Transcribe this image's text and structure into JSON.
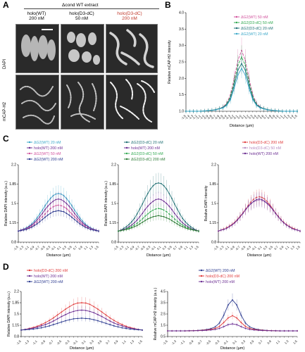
{
  "panels": {
    "A": "A",
    "B": "B",
    "C": "C",
    "D": "D"
  },
  "micrograph": {
    "header": "Δcond WT extract",
    "columns": [
      {
        "line1": "holo(WT)",
        "line2": "200 nM",
        "color": "#1a1a1a"
      },
      {
        "line1": "holo(D3-dC)",
        "line2": "50 nM",
        "color": "#1a1a1a"
      },
      {
        "line1": "holo(D3-dC)",
        "line2": "200 nM",
        "color": "#c0392b"
      }
    ],
    "rows": [
      "DAPI",
      "mCAP-H2"
    ]
  },
  "chart_data": [
    {
      "id": "B",
      "type": "line",
      "xlabel": "Distance (µm)",
      "ylabel": "Relative mCAP-H2 intensity",
      "x": [
        -1.5,
        -1.4,
        -1.3,
        -1.2,
        -1.1,
        -1.0,
        -0.9,
        -0.8,
        -0.7,
        -0.6,
        -0.5,
        -0.4,
        -0.3,
        -0.2,
        -0.1,
        0.0,
        0.1,
        0.2,
        0.3,
        0.4,
        0.5,
        0.6,
        0.7,
        0.8,
        0.9,
        1.0,
        1.1,
        1.2,
        1.3,
        1.4,
        1.5
      ],
      "ylim": [
        1.0,
        4.0
      ],
      "yticks": [
        1.0,
        1.5,
        2.0,
        2.5,
        3.0,
        3.5,
        4.0
      ],
      "legend": "top-right",
      "series": [
        {
          "name": "ΔG2(WT) 50 nM",
          "color": "#d14f9b",
          "dash": "4,1.5",
          "values": [
            1.0,
            1.0,
            1.0,
            1.0,
            1.0,
            1.01,
            1.02,
            1.03,
            1.05,
            1.08,
            1.13,
            1.25,
            1.5,
            2.0,
            2.55,
            2.85,
            2.55,
            2.0,
            1.5,
            1.25,
            1.13,
            1.08,
            1.05,
            1.03,
            1.02,
            1.01,
            1.0,
            1.0,
            1.0,
            1.0,
            1.0
          ]
        },
        {
          "name": "ΔG2(D3-dC) 50 nM",
          "color": "#2fa84f",
          "dash": "4,1.5",
          "values": [
            1.0,
            1.0,
            1.0,
            1.0,
            1.0,
            1.01,
            1.02,
            1.03,
            1.05,
            1.08,
            1.12,
            1.22,
            1.45,
            1.9,
            2.4,
            2.65,
            2.4,
            1.9,
            1.45,
            1.22,
            1.12,
            1.08,
            1.05,
            1.03,
            1.02,
            1.01,
            1.0,
            1.0,
            1.0,
            1.0,
            1.0
          ]
        },
        {
          "name": "ΔG2(D3-dC) 20 nM",
          "color": "#1f6f73",
          "dash": "",
          "values": [
            1.0,
            1.0,
            1.0,
            1.0,
            1.0,
            1.01,
            1.02,
            1.03,
            1.05,
            1.08,
            1.12,
            1.2,
            1.4,
            1.8,
            2.25,
            2.45,
            2.25,
            1.8,
            1.4,
            1.2,
            1.12,
            1.08,
            1.05,
            1.03,
            1.02,
            1.01,
            1.0,
            1.0,
            1.0,
            1.0,
            1.0
          ]
        },
        {
          "name": "ΔG2(WT) 20 nM",
          "color": "#3aa7c8",
          "dash": "",
          "values": [
            1.0,
            1.0,
            1.0,
            1.0,
            1.0,
            1.01,
            1.02,
            1.03,
            1.04,
            1.07,
            1.1,
            1.18,
            1.35,
            1.7,
            2.1,
            2.3,
            2.1,
            1.7,
            1.35,
            1.18,
            1.1,
            1.07,
            1.04,
            1.03,
            1.02,
            1.01,
            1.0,
            1.0,
            1.0,
            1.0,
            1.0
          ]
        }
      ]
    },
    {
      "id": "C1",
      "type": "line",
      "xlabel": "Distance (µm)",
      "ylabel": "Relative DAPI intensity (a.u.)",
      "x": [
        -1.5,
        -1.4,
        -1.3,
        -1.2,
        -1.1,
        -1.0,
        -0.9,
        -0.8,
        -0.7,
        -0.6,
        -0.5,
        -0.4,
        -0.3,
        -0.2,
        -0.1,
        0.0,
        0.1,
        0.2,
        0.3,
        0.4,
        0.5,
        0.6,
        0.7,
        0.8,
        0.9,
        1.0,
        1.1,
        1.2,
        1.3,
        1.4,
        1.5
      ],
      "ylim": [
        0.8,
        2.2
      ],
      "legend": "top",
      "series": [
        {
          "name": "ΔG2(WT) 20 nM",
          "color": "#3aa7c8",
          "dash": "",
          "values": [
            1.0,
            1.02,
            1.04,
            1.06,
            1.09,
            1.13,
            1.18,
            1.24,
            1.31,
            1.38,
            1.46,
            1.53,
            1.59,
            1.64,
            1.67,
            1.68,
            1.67,
            1.64,
            1.59,
            1.53,
            1.46,
            1.38,
            1.31,
            1.24,
            1.18,
            1.13,
            1.09,
            1.06,
            1.04,
            1.02,
            1.0
          ]
        },
        {
          "name": "holo(WT) 200 nM",
          "color": "#6a2c91",
          "dash": "",
          "values": [
            1.0,
            1.02,
            1.03,
            1.05,
            1.08,
            1.11,
            1.15,
            1.2,
            1.26,
            1.32,
            1.39,
            1.45,
            1.5,
            1.54,
            1.57,
            1.58,
            1.57,
            1.54,
            1.5,
            1.45,
            1.39,
            1.32,
            1.26,
            1.2,
            1.15,
            1.11,
            1.08,
            1.05,
            1.03,
            1.02,
            1.0
          ]
        },
        {
          "name": "ΔG2(WT) 50 nM",
          "color": "#d14f9b",
          "dash": "4,1.5",
          "values": [
            1.0,
            1.01,
            1.03,
            1.04,
            1.06,
            1.09,
            1.12,
            1.16,
            1.21,
            1.26,
            1.31,
            1.36,
            1.41,
            1.44,
            1.46,
            1.47,
            1.46,
            1.44,
            1.41,
            1.36,
            1.31,
            1.26,
            1.21,
            1.16,
            1.12,
            1.09,
            1.06,
            1.04,
            1.03,
            1.01,
            1.0
          ]
        },
        {
          "name": "ΔG2(WT) 200 nM",
          "color": "#2b3a8f",
          "dash": "",
          "values": [
            1.0,
            1.01,
            1.02,
            1.03,
            1.05,
            1.07,
            1.1,
            1.13,
            1.17,
            1.21,
            1.25,
            1.29,
            1.32,
            1.35,
            1.36,
            1.37,
            1.36,
            1.35,
            1.32,
            1.29,
            1.25,
            1.21,
            1.17,
            1.13,
            1.1,
            1.07,
            1.05,
            1.03,
            1.02,
            1.01,
            1.0
          ]
        }
      ]
    },
    {
      "id": "C2",
      "type": "line",
      "xlabel": "Distance (µm)",
      "ylabel": "Relative DAPI intensity (a.u.)",
      "x": [
        -1.5,
        -1.4,
        -1.3,
        -1.2,
        -1.1,
        -1.0,
        -0.9,
        -0.8,
        -0.7,
        -0.6,
        -0.5,
        -0.4,
        -0.3,
        -0.2,
        -0.1,
        0.0,
        0.1,
        0.2,
        0.3,
        0.4,
        0.5,
        0.6,
        0.7,
        0.8,
        0.9,
        1.0,
        1.1,
        1.2,
        1.3,
        1.4,
        1.5
      ],
      "ylim": [
        0.8,
        2.2
      ],
      "legend": "top",
      "series": [
        {
          "name": "ΔG2(D3-dC) 20 nM",
          "color": "#1f6f73",
          "dash": "",
          "values": [
            1.0,
            1.02,
            1.05,
            1.08,
            1.12,
            1.17,
            1.23,
            1.31,
            1.4,
            1.49,
            1.59,
            1.68,
            1.76,
            1.82,
            1.86,
            1.87,
            1.86,
            1.82,
            1.76,
            1.68,
            1.59,
            1.49,
            1.4,
            1.31,
            1.23,
            1.17,
            1.12,
            1.08,
            1.05,
            1.02,
            1.0
          ]
        },
        {
          "name": "holo(WT) 200 nM",
          "color": "#6a2c91",
          "dash": "",
          "values": [
            1.0,
            1.02,
            1.03,
            1.05,
            1.08,
            1.11,
            1.15,
            1.2,
            1.26,
            1.32,
            1.39,
            1.45,
            1.5,
            1.54,
            1.57,
            1.58,
            1.57,
            1.54,
            1.5,
            1.45,
            1.39,
            1.32,
            1.26,
            1.2,
            1.15,
            1.11,
            1.08,
            1.05,
            1.03,
            1.02,
            1.0
          ]
        },
        {
          "name": "ΔG2(D3-dC) 50 nM",
          "color": "#2fa84f",
          "dash": "4,1.5",
          "values": [
            1.0,
            1.01,
            1.02,
            1.04,
            1.06,
            1.08,
            1.11,
            1.14,
            1.18,
            1.22,
            1.27,
            1.31,
            1.35,
            1.38,
            1.4,
            1.41,
            1.4,
            1.38,
            1.35,
            1.31,
            1.27,
            1.22,
            1.18,
            1.14,
            1.11,
            1.08,
            1.06,
            1.04,
            1.02,
            1.01,
            1.0
          ]
        },
        {
          "name": "ΔG2(D3-dC) 200 nM",
          "color": "#2a7a33",
          "dash": "",
          "values": [
            1.0,
            1.01,
            1.02,
            1.03,
            1.04,
            1.06,
            1.08,
            1.1,
            1.13,
            1.16,
            1.19,
            1.22,
            1.24,
            1.26,
            1.27,
            1.28,
            1.27,
            1.26,
            1.24,
            1.22,
            1.19,
            1.16,
            1.13,
            1.1,
            1.08,
            1.06,
            1.04,
            1.03,
            1.02,
            1.01,
            1.0
          ]
        }
      ]
    },
    {
      "id": "C3",
      "type": "line",
      "xlabel": "Distance (µm)",
      "ylabel": "Relative DAPI intensity",
      "x": [
        -1.5,
        -1.4,
        -1.3,
        -1.2,
        -1.1,
        -1.0,
        -0.9,
        -0.8,
        -0.7,
        -0.6,
        -0.5,
        -0.4,
        -0.3,
        -0.2,
        -0.1,
        0.0,
        0.1,
        0.2,
        0.3,
        0.4,
        0.5,
        0.6,
        0.7,
        0.8,
        0.9,
        1.0,
        1.1,
        1.2,
        1.3,
        1.4,
        1.5
      ],
      "ylim": [
        0.8,
        2.2
      ],
      "legend": "top-right",
      "series": [
        {
          "name": "holo(D3-dC) 200 nM",
          "color": "#e03a3a",
          "dash": "4,1.5",
          "values": [
            1.0,
            1.02,
            1.04,
            1.06,
            1.09,
            1.12,
            1.16,
            1.21,
            1.27,
            1.33,
            1.4,
            1.47,
            1.53,
            1.58,
            1.61,
            1.62,
            1.61,
            1.58,
            1.53,
            1.47,
            1.4,
            1.33,
            1.27,
            1.21,
            1.16,
            1.12,
            1.09,
            1.06,
            1.04,
            1.02,
            1.0
          ]
        },
        {
          "name": "holo(D3-dC) 50 nM",
          "color": "#b58ac0",
          "dash": "4,1.5",
          "values": [
            1.0,
            1.02,
            1.03,
            1.05,
            1.08,
            1.11,
            1.15,
            1.2,
            1.26,
            1.32,
            1.38,
            1.44,
            1.49,
            1.53,
            1.55,
            1.56,
            1.55,
            1.53,
            1.49,
            1.44,
            1.38,
            1.32,
            1.26,
            1.2,
            1.15,
            1.11,
            1.08,
            1.05,
            1.03,
            1.02,
            1.0
          ]
        },
        {
          "name": "holo(WT) 200 nM",
          "color": "#6a2c91",
          "dash": "",
          "values": [
            1.0,
            1.02,
            1.03,
            1.05,
            1.08,
            1.11,
            1.15,
            1.2,
            1.26,
            1.32,
            1.39,
            1.45,
            1.5,
            1.54,
            1.57,
            1.58,
            1.57,
            1.54,
            1.5,
            1.45,
            1.39,
            1.32,
            1.26,
            1.2,
            1.15,
            1.11,
            1.08,
            1.05,
            1.03,
            1.02,
            1.0
          ]
        }
      ]
    },
    {
      "id": "D1",
      "type": "line",
      "xlabel": "Distance (µm)",
      "ylabel": "Relative DAPI intensity (a.u.)",
      "x": [
        -1.5,
        -1.4,
        -1.3,
        -1.2,
        -1.1,
        -1.0,
        -0.9,
        -0.8,
        -0.7,
        -0.6,
        -0.5,
        -0.4,
        -0.3,
        -0.2,
        -0.1,
        0.0,
        0.1,
        0.2,
        0.3,
        0.4,
        0.5,
        0.6,
        0.7,
        0.8,
        0.9,
        1.0,
        1.1,
        1.2,
        1.3,
        1.4,
        1.5
      ],
      "ylim": [
        0.8,
        2.2
      ],
      "legend": "top-left",
      "series": [
        {
          "name": "holo(D3-dC) 200 nM",
          "color": "#e03a3a",
          "dash": "",
          "values": [
            1.0,
            1.02,
            1.05,
            1.08,
            1.12,
            1.17,
            1.23,
            1.3,
            1.38,
            1.47,
            1.56,
            1.65,
            1.73,
            1.8,
            1.84,
            1.85,
            1.84,
            1.8,
            1.73,
            1.65,
            1.56,
            1.47,
            1.38,
            1.3,
            1.23,
            1.17,
            1.12,
            1.08,
            1.05,
            1.02,
            1.0
          ]
        },
        {
          "name": "holo(WT) 200 nM",
          "color": "#6a2c91",
          "dash": "",
          "values": [
            1.0,
            1.02,
            1.04,
            1.06,
            1.09,
            1.13,
            1.17,
            1.22,
            1.28,
            1.35,
            1.42,
            1.48,
            1.54,
            1.58,
            1.61,
            1.62,
            1.61,
            1.58,
            1.54,
            1.48,
            1.42,
            1.35,
            1.28,
            1.22,
            1.17,
            1.13,
            1.09,
            1.06,
            1.04,
            1.02,
            1.0
          ]
        },
        {
          "name": "ΔG2(WT) 200 nM",
          "color": "#2b3a8f",
          "dash": "",
          "values": [
            1.0,
            1.01,
            1.02,
            1.03,
            1.05,
            1.07,
            1.1,
            1.13,
            1.17,
            1.21,
            1.25,
            1.29,
            1.32,
            1.35,
            1.36,
            1.37,
            1.36,
            1.35,
            1.32,
            1.29,
            1.25,
            1.21,
            1.17,
            1.13,
            1.1,
            1.07,
            1.05,
            1.03,
            1.02,
            1.01,
            1.0
          ]
        }
      ]
    },
    {
      "id": "D2",
      "type": "line",
      "xlabel": "Distance (µm)",
      "ylabel": "Relative mCAP-H2 intensity (a.u.)",
      "x": [
        -1.5,
        -1.4,
        -1.3,
        -1.2,
        -1.1,
        -1.0,
        -0.9,
        -0.8,
        -0.7,
        -0.6,
        -0.5,
        -0.4,
        -0.3,
        -0.2,
        -0.1,
        0.0,
        0.1,
        0.2,
        0.3,
        0.4,
        0.5,
        0.6,
        0.7,
        0.8,
        0.9,
        1.0,
        1.1,
        1.2,
        1.3,
        1.4,
        1.5
      ],
      "ylim": [
        0.5,
        4.5
      ],
      "legend": "top-right",
      "series": [
        {
          "name": "ΔG2(WT) 200 nM",
          "color": "#2b3a8f",
          "dash": "",
          "values": [
            1.0,
            1.0,
            1.0,
            1.0,
            1.0,
            1.01,
            1.02,
            1.04,
            1.07,
            1.12,
            1.2,
            1.35,
            1.7,
            2.4,
            3.3,
            3.75,
            3.3,
            2.4,
            1.7,
            1.35,
            1.2,
            1.12,
            1.07,
            1.04,
            1.02,
            1.01,
            1.0,
            1.0,
            1.0,
            1.0,
            1.0
          ]
        },
        {
          "name": "holo(D3-dC) 200 nM",
          "color": "#e03a3a",
          "dash": "",
          "values": [
            1.0,
            1.0,
            1.0,
            1.0,
            1.0,
            1.01,
            1.02,
            1.03,
            1.05,
            1.08,
            1.13,
            1.22,
            1.4,
            1.75,
            2.15,
            2.35,
            2.15,
            1.75,
            1.4,
            1.22,
            1.13,
            1.08,
            1.05,
            1.03,
            1.02,
            1.01,
            1.0,
            1.0,
            1.0,
            1.0,
            1.0
          ]
        },
        {
          "name": "holo(WT) 200 nM",
          "color": "#6a2c91",
          "dash": "",
          "values": [
            1.0,
            1.0,
            1.0,
            1.0,
            1.0,
            1.01,
            1.01,
            1.02,
            1.03,
            1.05,
            1.08,
            1.13,
            1.22,
            1.38,
            1.55,
            1.62,
            1.55,
            1.38,
            1.22,
            1.13,
            1.08,
            1.05,
            1.03,
            1.02,
            1.01,
            1.01,
            1.0,
            1.0,
            1.0,
            1.0,
            1.0
          ]
        }
      ]
    }
  ]
}
